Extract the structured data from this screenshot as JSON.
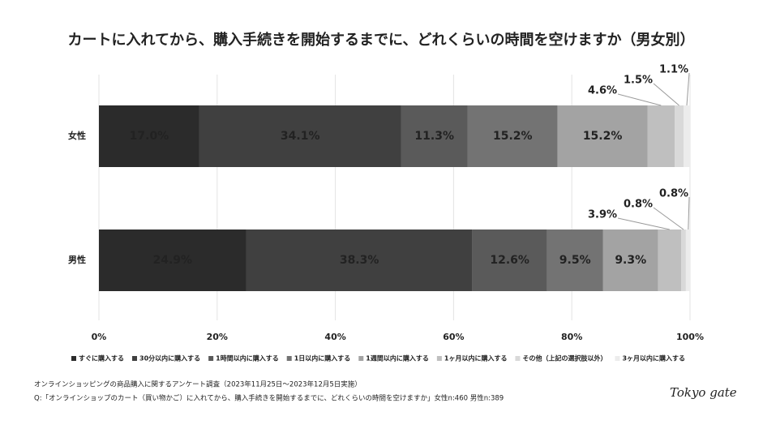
{
  "chart_data": {
    "type": "stacked-bar-horizontal",
    "title": "カートに入れてから、購入手続きを開始するまでに、どれくらいの時間を空けますか（男女別）",
    "categories": [
      "女性",
      "男性"
    ],
    "series": [
      {
        "name": "すぐに購入する",
        "color": "#2b2b2b",
        "label_color": "#ffffff",
        "values": [
          17.0,
          24.9
        ],
        "value_labels": [
          "17.0%",
          "24.9%"
        ]
      },
      {
        "name": "30分以内に購入する",
        "color": "#404040",
        "label_color": "#ffffff",
        "values": [
          34.1,
          38.3
        ],
        "value_labels": [
          "34.1%",
          "38.3%"
        ]
      },
      {
        "name": "1時間以内に購入する",
        "color": "#5a5a5a",
        "label_color": "#ffffff",
        "values": [
          11.3,
          12.6
        ],
        "value_labels": [
          "11.3%",
          "12.6%"
        ]
      },
      {
        "name": "1日以内に購入する",
        "color": "#737373",
        "label_color": "#222222",
        "values": [
          15.2,
          9.5
        ],
        "value_labels": [
          "15.2%",
          "9.5%"
        ]
      },
      {
        "name": "1週間以内に購入する",
        "color": "#a3a3a3",
        "label_color": "#222222",
        "values": [
          15.2,
          9.3
        ],
        "value_labels": [
          "15.2%",
          "9.3%"
        ]
      },
      {
        "name": "1ヶ月以内に購入する",
        "color": "#bfbfbf",
        "label_color": "#222222",
        "values": [
          4.6,
          3.9
        ],
        "value_labels": [
          "4.6%",
          "3.9%"
        ]
      },
      {
        "name": "その他（上記の選択肢以外）",
        "color": "#d9d9d9",
        "label_color": "#222222",
        "values": [
          1.5,
          0.8
        ],
        "value_labels": [
          "1.5%",
          "0.8%"
        ]
      },
      {
        "name": "3ヶ月以内に購入する",
        "color": "#ececec",
        "label_color": "#222222",
        "values": [
          1.1,
          0.8
        ],
        "value_labels": [
          "1.1%",
          "0.8%"
        ]
      }
    ],
    "xlim": [
      0,
      100
    ],
    "xticks": [
      {
        "value": 0,
        "label": "0%"
      },
      {
        "value": 20,
        "label": "20%"
      },
      {
        "value": 40,
        "label": "40%"
      },
      {
        "value": 60,
        "label": "60%"
      },
      {
        "value": 80,
        "label": "80%"
      },
      {
        "value": 100,
        "label": "100%"
      }
    ],
    "grid": true,
    "legend": "bottom",
    "notes": [
      "オンラインショッピングの商品購入に関するアンケート調査（2023年11月25日〜2023年12月5日実施）",
      "Q:「オンラインショップのカート（買い物かご）に入れてから、購入手続きを開始するまでに、どれくらいの時間を空けますか」女性n:460 男性n:389"
    ],
    "logo": "Tokyo gate"
  }
}
